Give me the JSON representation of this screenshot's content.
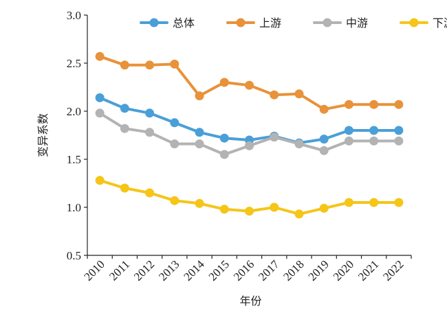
{
  "chart_data": {
    "type": "line",
    "title": "",
    "xlabel": "年份",
    "ylabel": "变异系数",
    "categories": [
      "2010",
      "2011",
      "2012",
      "2013",
      "2014",
      "2015",
      "2016",
      "2017",
      "2018",
      "2019",
      "2020",
      "2021",
      "2022"
    ],
    "ylim": [
      0.5,
      3.0
    ],
    "yticks": [
      "0.5",
      "1.0",
      "1.5",
      "2.0",
      "2.5",
      "3.0"
    ],
    "grid": false,
    "legend_position": "top-right",
    "series": [
      {
        "name": "总体",
        "color": "#4a9fd8",
        "values": [
          2.14,
          2.03,
          1.98,
          1.88,
          1.78,
          1.72,
          1.7,
          1.74,
          1.67,
          1.71,
          1.8,
          1.8,
          1.8
        ]
      },
      {
        "name": "上游",
        "color": "#e8923a",
        "values": [
          2.57,
          2.48,
          2.48,
          2.49,
          2.16,
          2.3,
          2.27,
          2.17,
          2.18,
          2.02,
          2.07,
          2.07,
          2.07
        ]
      },
      {
        "name": "中游",
        "color": "#b3b3b3",
        "values": [
          1.98,
          1.82,
          1.78,
          1.66,
          1.66,
          1.55,
          1.64,
          1.73,
          1.66,
          1.59,
          1.69,
          1.69,
          1.69
        ]
      },
      {
        "name": "下游",
        "color": "#f5c518",
        "values": [
          1.28,
          1.2,
          1.15,
          1.07,
          1.04,
          0.98,
          0.96,
          1.0,
          0.93,
          0.99,
          1.05,
          1.05,
          1.05
        ]
      }
    ]
  }
}
